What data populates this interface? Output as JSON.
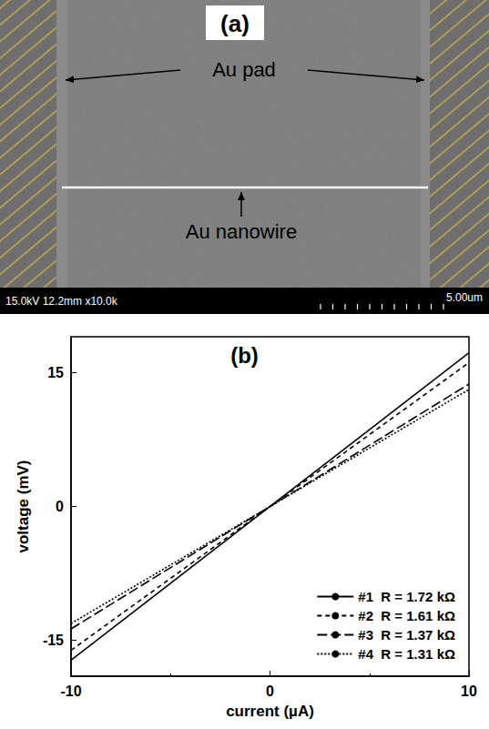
{
  "image_panel": {
    "label": "(a)",
    "pad_label": "Au pad",
    "wire_label": "Au nanowire",
    "info_bar": "15.0kV 12.2mm x10.0k",
    "scale_bar": "5.00um"
  },
  "chart_data": {
    "type": "line",
    "panel_label": "(b)",
    "x_label": "current (µA)",
    "y_label": "voltage (mV)",
    "x": [
      -10,
      10
    ],
    "series": [
      {
        "name": "#1  R = 1.72 kΩ",
        "color": "#000000",
        "line_style": "solid",
        "values": [
          -17.2,
          17.2
        ]
      },
      {
        "name": "#2  R = 1.61 kΩ",
        "color": "#000000",
        "line_style": "dashed",
        "values": [
          -16.1,
          16.1
        ]
      },
      {
        "name": "#3  R = 1.37 kΩ",
        "color": "#000000",
        "line_style": "long_dashed",
        "values": [
          -13.7,
          13.7
        ]
      },
      {
        "name": "#4  R = 1.31 kΩ",
        "color": "#000000",
        "line_style": "dotted",
        "values": [
          -13.1,
          13.1
        ]
      }
    ],
    "xlim": [
      -10,
      10
    ],
    "xticks": [
      -10,
      0,
      10
    ],
    "ylim": [
      -19,
      19
    ],
    "yticks": [
      -15,
      0,
      15
    ],
    "grid": false,
    "legend": "lower right"
  }
}
